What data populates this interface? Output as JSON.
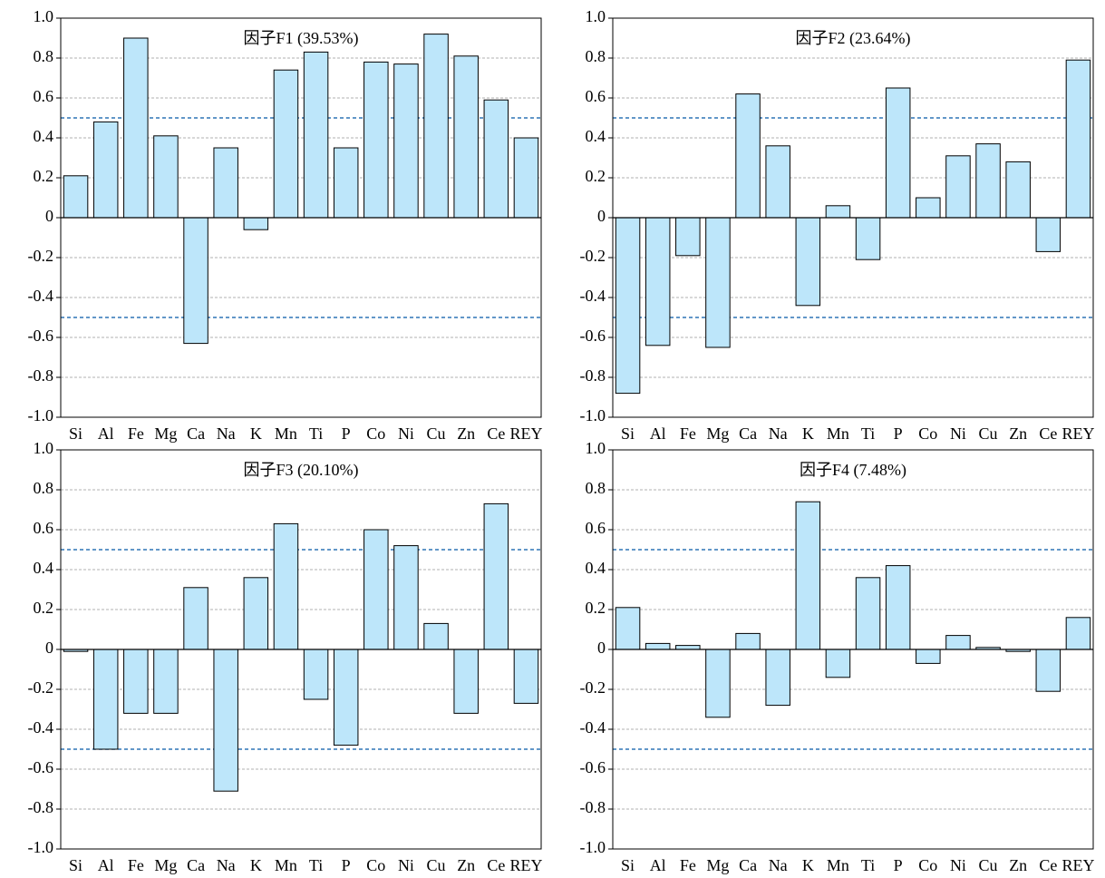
{
  "chart_data": [
    {
      "type": "bar",
      "title": "因子F1 (39.53%)",
      "categories": [
        "Si",
        "Al",
        "Fe",
        "Mg",
        "Ca",
        "Na",
        "K",
        "Mn",
        "Ti",
        "P",
        "Co",
        "Ni",
        "Cu",
        "Zn",
        "Ce",
        "REY"
      ],
      "values": [
        0.21,
        0.48,
        0.9,
        0.41,
        -0.63,
        0.35,
        -0.06,
        0.74,
        0.83,
        0.35,
        0.78,
        0.77,
        0.92,
        0.81,
        0.59,
        0.4
      ],
      "color": "#bde6fa",
      "ylim": [
        -1,
        1
      ],
      "yticks": [
        {
          "value": -1,
          "label": "-1.0"
        },
        -0.8,
        -0.6,
        -0.4,
        -0.2,
        0,
        0.2,
        0.4,
        0.6,
        0.8,
        {
          "value": 1,
          "label": "1.0"
        }
      ],
      "grid": true,
      "reference_lines": [
        0.5,
        -0.5
      ],
      "reference_color": "#2e75b6"
    },
    {
      "type": "bar",
      "title": "因子F2 (23.64%)",
      "categories": [
        "Si",
        "Al",
        "Fe",
        "Mg",
        "Ca",
        "Na",
        "K",
        "Mn",
        "Ti",
        "P",
        "Co",
        "Ni",
        "Cu",
        "Zn",
        "Ce",
        "REY"
      ],
      "values": [
        -0.88,
        -0.64,
        -0.19,
        -0.65,
        0.62,
        0.36,
        -0.44,
        0.06,
        -0.21,
        0.65,
        0.1,
        0.31,
        0.37,
        0.28,
        -0.17,
        0.79
      ],
      "color": "#bde6fa",
      "ylim": [
        -1,
        1
      ],
      "yticks": [
        {
          "value": -1,
          "label": "-1.0"
        },
        -0.8,
        -0.6,
        -0.4,
        -0.2,
        0,
        0.2,
        0.4,
        0.6,
        0.8,
        {
          "value": 1,
          "label": "1.0"
        }
      ],
      "grid": true,
      "reference_lines": [
        0.5,
        -0.5
      ],
      "reference_color": "#2e75b6"
    },
    {
      "type": "bar",
      "title": "因子F3 (20.10%)",
      "categories": [
        "Si",
        "Al",
        "Fe",
        "Mg",
        "Ca",
        "Na",
        "K",
        "Mn",
        "Ti",
        "P",
        "Co",
        "Ni",
        "Cu",
        "Zn",
        "Ce",
        "REY"
      ],
      "values": [
        -0.01,
        -0.5,
        -0.32,
        -0.32,
        0.31,
        -0.71,
        0.36,
        0.63,
        -0.25,
        -0.48,
        0.6,
        0.52,
        0.13,
        -0.32,
        0.73,
        -0.27
      ],
      "color": "#bde6fa",
      "ylim": [
        -1,
        1
      ],
      "yticks": [
        {
          "value": -1,
          "label": "-1.0"
        },
        -0.8,
        -0.6,
        -0.4,
        -0.2,
        0,
        0.2,
        0.4,
        0.6,
        0.8,
        {
          "value": 1,
          "label": "1.0"
        }
      ],
      "grid": true,
      "reference_lines": [
        0.5,
        -0.5
      ],
      "reference_color": "#2e75b6"
    },
    {
      "type": "bar",
      "title": "因子F4 (7.48%)",
      "categories": [
        "Si",
        "Al",
        "Fe",
        "Mg",
        "Ca",
        "Na",
        "K",
        "Mn",
        "Ti",
        "P",
        "Co",
        "Ni",
        "Cu",
        "Zn",
        "Ce",
        "REY"
      ],
      "values": [
        0.21,
        0.03,
        0.02,
        -0.34,
        0.08,
        -0.28,
        0.74,
        -0.14,
        0.36,
        0.42,
        -0.07,
        0.07,
        0.01,
        -0.01,
        -0.21,
        0.16
      ],
      "color": "#bde6fa",
      "ylim": [
        -1,
        1
      ],
      "yticks": [
        {
          "value": -1,
          "label": "-1.0"
        },
        -0.8,
        -0.6,
        -0.4,
        -0.2,
        0,
        0.2,
        0.4,
        0.6,
        0.8,
        {
          "value": 1,
          "label": "1.0"
        }
      ],
      "grid": true,
      "reference_lines": [
        0.5,
        -0.5
      ],
      "reference_color": "#2e75b6"
    }
  ]
}
